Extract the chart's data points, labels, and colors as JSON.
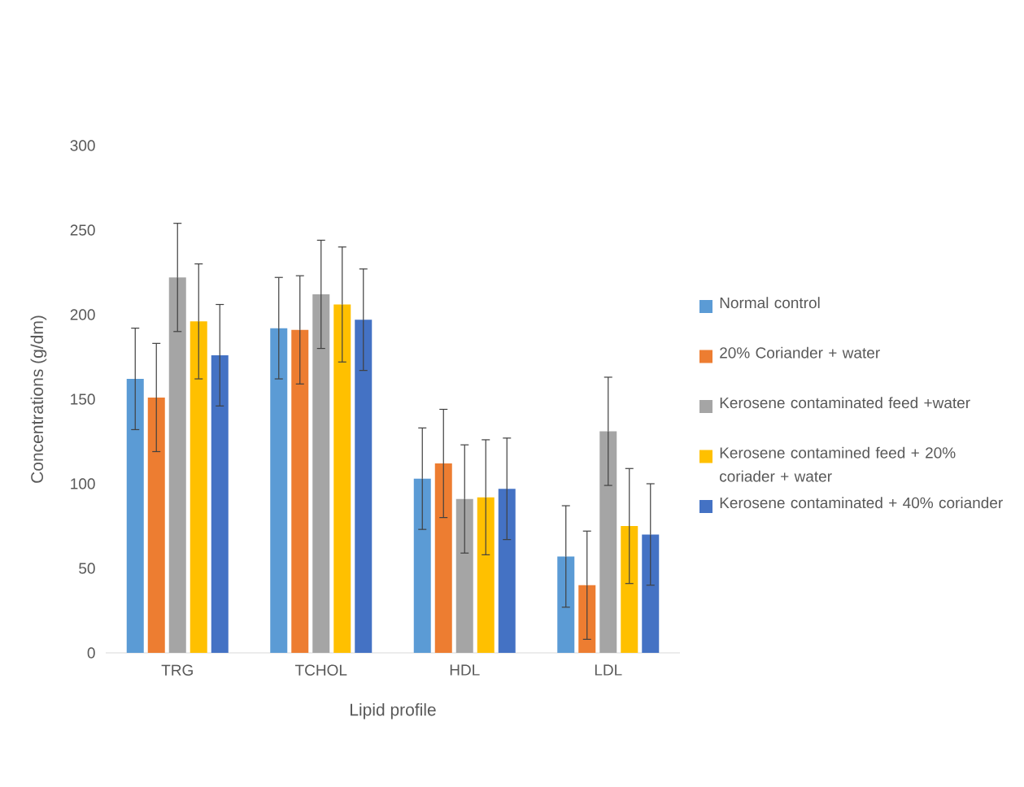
{
  "chart_data": {
    "type": "bar",
    "xlabel": "Lipid profile",
    "ylabel": "Concentrations (g/dm)",
    "categories": [
      "TRG",
      "TCHOL",
      "HDL",
      "LDL"
    ],
    "series": [
      {
        "name": "Normal control",
        "color": "#5b9bd5",
        "values": [
          162,
          192,
          103,
          57
        ],
        "errors": [
          30,
          30,
          30,
          30
        ]
      },
      {
        "name": "20% Coriander + water",
        "color": "#ed7d31",
        "values": [
          151,
          191,
          112,
          40
        ],
        "errors": [
          32,
          32,
          32,
          32
        ]
      },
      {
        "name": "Kerosene contaminated feed +water",
        "color": "#a5a5a5",
        "values": [
          222,
          212,
          91,
          131
        ],
        "errors": [
          32,
          32,
          32,
          32
        ]
      },
      {
        "name": "Kerosene contamined feed + 20% coriader + water",
        "color": "#ffc000",
        "values": [
          196,
          206,
          92,
          75
        ],
        "errors": [
          34,
          34,
          34,
          34
        ]
      },
      {
        "name": "Kerosene contaminated + 40% coriander",
        "color": "#4472c4",
        "values": [
          176,
          197,
          97,
          70
        ],
        "errors": [
          30,
          30,
          30,
          30
        ]
      }
    ],
    "ylim": [
      0,
      300
    ],
    "yticks": [
      0,
      50,
      100,
      150,
      200,
      250,
      300
    ],
    "legend": "right"
  }
}
